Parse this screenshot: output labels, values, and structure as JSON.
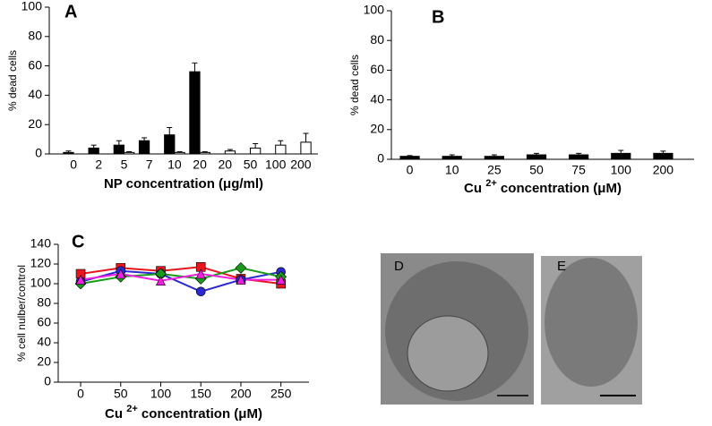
{
  "chart_data": [
    {
      "type": "bar",
      "panel": "A",
      "ylabel": "% dead cells",
      "xlabel": [
        "NP concentration (μg/ml)"
      ],
      "categories": [
        "0",
        "2",
        "5",
        "7",
        "10",
        "20",
        "20",
        "50",
        "100",
        "200"
      ],
      "series": [
        {
          "color": "#000000",
          "values": [
            1,
            4,
            6,
            9,
            13,
            56,
            null,
            null,
            null,
            null
          ],
          "errors": [
            1,
            2,
            3,
            2,
            5,
            6,
            null,
            null,
            null,
            null
          ]
        },
        {
          "color": "#ffffff",
          "values": [
            null,
            null,
            1,
            null,
            1,
            1,
            2,
            4,
            6,
            8
          ],
          "errors": [
            null,
            null,
            0.5,
            null,
            0.5,
            0.5,
            1,
            3,
            3,
            6
          ]
        }
      ],
      "ylim": [
        0,
        100
      ],
      "yticks": [
        0,
        20,
        40,
        60,
        80,
        100
      ]
    },
    {
      "type": "bar",
      "panel": "B",
      "ylabel": "% dead cells",
      "xlabel": [
        "Cu ",
        "2+",
        " concentration (μM)"
      ],
      "categories": [
        "0",
        "10",
        "25",
        "50",
        "75",
        "100",
        "200"
      ],
      "series": [
        {
          "color": "#000000",
          "values": [
            2,
            2,
            2,
            3,
            3,
            4,
            4
          ],
          "errors": [
            0.5,
            1,
            1,
            1,
            1,
            2,
            1.5
          ]
        }
      ],
      "ylim": [
        0,
        100
      ],
      "yticks": [
        0,
        20,
        40,
        60,
        80,
        100
      ]
    },
    {
      "type": "line",
      "panel": "C",
      "ylabel": "% cell nulber/control",
      "xlabel": [
        "Cu ",
        "2+",
        " concentration (μM)"
      ],
      "x": [
        0,
        50,
        100,
        150,
        200,
        250
      ],
      "series": [
        {
          "color": "#e8141e",
          "marker": "square",
          "values": [
            110,
            116,
            113,
            117,
            105,
            100
          ]
        },
        {
          "color": "#2a2ad0",
          "marker": "circle",
          "values": [
            102,
            113,
            110,
            92,
            104,
            112
          ]
        },
        {
          "color": "#1a9a1a",
          "marker": "diamond",
          "values": [
            100,
            107,
            110,
            105,
            116,
            107
          ]
        },
        {
          "color": "#f020e0",
          "marker": "triangle",
          "values": [
            104,
            110,
            103,
            110,
            104,
            104
          ]
        }
      ],
      "xlim": [
        -28,
        285
      ],
      "xticks": [
        0,
        50,
        100,
        150,
        200,
        250
      ],
      "ylim": [
        0,
        140
      ],
      "yticks": [
        0,
        20,
        40,
        60,
        80,
        100,
        120,
        140
      ]
    }
  ],
  "images": [
    {
      "label": "D"
    },
    {
      "label": "E"
    }
  ]
}
